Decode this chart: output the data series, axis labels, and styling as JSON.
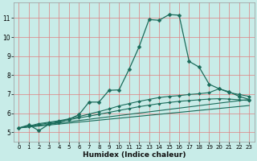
{
  "title": "",
  "xlabel": "Humidex (Indice chaleur)",
  "background_color": "#c8ece8",
  "grid_color": "#e08080",
  "line_color": "#1a6b5a",
  "xlim": [
    -0.5,
    23.5
  ],
  "ylim": [
    4.5,
    11.8
  ],
  "xticks": [
    0,
    1,
    2,
    3,
    4,
    5,
    6,
    7,
    8,
    9,
    10,
    11,
    12,
    13,
    14,
    15,
    16,
    17,
    18,
    19,
    20,
    21,
    22,
    23
  ],
  "yticks": [
    5,
    6,
    7,
    8,
    9,
    10,
    11
  ],
  "series": [
    {
      "x": [
        0,
        1,
        2,
        3,
        4,
        5,
        6,
        7,
        8,
        9,
        10,
        11,
        12,
        13,
        14,
        15,
        16,
        17,
        18,
        19,
        20,
        21,
        22,
        23
      ],
      "y": [
        5.22,
        5.38,
        5.08,
        5.42,
        5.52,
        5.68,
        5.92,
        6.58,
        6.58,
        7.2,
        7.22,
        8.3,
        9.48,
        10.92,
        10.88,
        11.18,
        11.15,
        8.72,
        8.42,
        7.52,
        7.28,
        7.12,
        6.88,
        6.72
      ],
      "marker": "D",
      "markersize": 2.5,
      "linewidth": 0.9
    },
    {
      "x": [
        0,
        1,
        2,
        3,
        4,
        5,
        6,
        7,
        8,
        9,
        10,
        11,
        12,
        13,
        14,
        15,
        16,
        17,
        18,
        19,
        20,
        21,
        22,
        23
      ],
      "y": [
        5.22,
        5.32,
        5.45,
        5.52,
        5.6,
        5.7,
        5.82,
        5.95,
        6.08,
        6.22,
        6.38,
        6.5,
        6.62,
        6.72,
        6.82,
        6.88,
        6.92,
        6.98,
        7.02,
        7.08,
        7.28,
        7.08,
        6.98,
        6.88
      ],
      "marker": "D",
      "markersize": 2.0,
      "linewidth": 0.8
    },
    {
      "x": [
        0,
        1,
        2,
        3,
        4,
        5,
        6,
        7,
        8,
        9,
        10,
        11,
        12,
        13,
        14,
        15,
        16,
        17,
        18,
        19,
        20,
        21,
        22,
        23
      ],
      "y": [
        5.22,
        5.3,
        5.4,
        5.48,
        5.56,
        5.65,
        5.75,
        5.84,
        5.94,
        6.04,
        6.14,
        6.24,
        6.34,
        6.42,
        6.5,
        6.56,
        6.62,
        6.66,
        6.7,
        6.74,
        6.76,
        6.74,
        6.7,
        6.66
      ],
      "marker": "D",
      "markersize": 1.8,
      "linewidth": 0.8
    },
    {
      "x": [
        0,
        23
      ],
      "y": [
        5.22,
        6.72
      ],
      "marker": null,
      "markersize": 0,
      "linewidth": 0.8
    },
    {
      "x": [
        0,
        23
      ],
      "y": [
        5.22,
        6.4
      ],
      "marker": null,
      "markersize": 0,
      "linewidth": 0.8
    }
  ]
}
